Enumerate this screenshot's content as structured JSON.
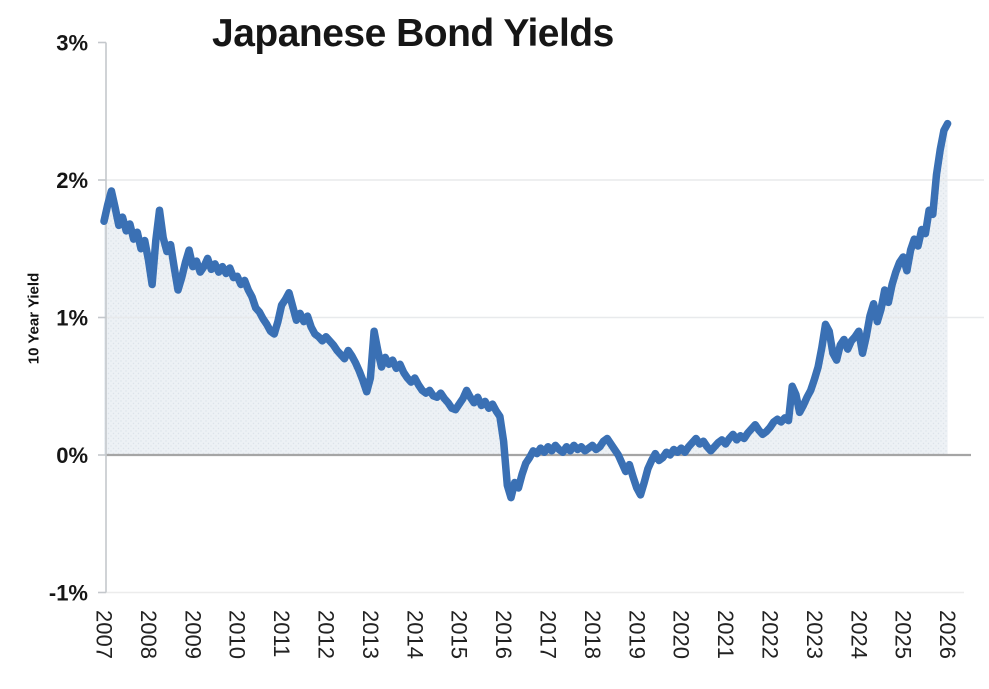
{
  "title": "Japanese Bond Yields",
  "y_axis": {
    "label": "10 Year Yield",
    "ticks": [
      "3%",
      "2%",
      "1%",
      "0%",
      "-1%"
    ]
  },
  "x_axis": {
    "ticks": [
      "2007",
      "2008",
      "2009",
      "2010",
      "2011",
      "2012",
      "2013",
      "2014",
      "2015",
      "2016",
      "2017",
      "2018",
      "2019",
      "2020",
      "2021",
      "2022",
      "2023",
      "2024",
      "2025",
      "2026"
    ]
  },
  "colors": {
    "line": "#3A70B4",
    "fill_base": "#EDF1F5",
    "fill_dot": "#DCE3EA",
    "grid_light": "#E8EAEC",
    "grid_faint": "#ECECEC",
    "zero_line": "#A5A5A5",
    "axis": "#C4C8CC",
    "text": "#161616",
    "tick_text": "#222222"
  },
  "chart_data": {
    "type": "area",
    "title": "Japanese Bond Yields",
    "ylabel": "10 Year Yield",
    "xlabel": "",
    "series_name": "10 Year Yield",
    "frequency": "monthly",
    "x_start_year": 2007,
    "x_end_year": 2026,
    "x_tick_years": [
      2007,
      2008,
      2009,
      2010,
      2011,
      2012,
      2013,
      2014,
      2015,
      2016,
      2017,
      2018,
      2019,
      2020,
      2021,
      2022,
      2023,
      2024,
      2025,
      2026
    ],
    "y_tick_values": [
      3,
      2,
      1,
      0,
      -1
    ],
    "ylim": [
      -1,
      3
    ],
    "grid": "horizontal-only",
    "legend": "none",
    "unit": "percent",
    "values": [
      1.7,
      1.82,
      1.92,
      1.8,
      1.67,
      1.73,
      1.63,
      1.68,
      1.57,
      1.62,
      1.5,
      1.56,
      1.42,
      1.24,
      1.56,
      1.78,
      1.58,
      1.48,
      1.53,
      1.36,
      1.2,
      1.29,
      1.4,
      1.49,
      1.37,
      1.41,
      1.33,
      1.37,
      1.43,
      1.35,
      1.39,
      1.33,
      1.37,
      1.32,
      1.36,
      1.29,
      1.3,
      1.24,
      1.27,
      1.2,
      1.15,
      1.07,
      1.04,
      0.99,
      0.95,
      0.9,
      0.88,
      0.97,
      1.09,
      1.13,
      1.18,
      1.08,
      0.98,
      1.03,
      0.97,
      1.01,
      0.93,
      0.88,
      0.86,
      0.83,
      0.86,
      0.83,
      0.8,
      0.76,
      0.73,
      0.7,
      0.76,
      0.72,
      0.67,
      0.61,
      0.54,
      0.46,
      0.56,
      0.9,
      0.76,
      0.64,
      0.71,
      0.66,
      0.69,
      0.63,
      0.66,
      0.6,
      0.56,
      0.53,
      0.56,
      0.51,
      0.47,
      0.45,
      0.47,
      0.43,
      0.42,
      0.45,
      0.41,
      0.38,
      0.34,
      0.33,
      0.37,
      0.41,
      0.47,
      0.42,
      0.38,
      0.42,
      0.36,
      0.39,
      0.34,
      0.37,
      0.32,
      0.28,
      0.1,
      -0.22,
      -0.31,
      -0.2,
      -0.24,
      -0.14,
      -0.06,
      -0.02,
      0.03,
      0.01,
      0.05,
      0.02,
      0.06,
      0.03,
      0.07,
      0.04,
      0.02,
      0.06,
      0.03,
      0.07,
      0.04,
      0.06,
      0.03,
      0.05,
      0.07,
      0.04,
      0.06,
      0.1,
      0.12,
      0.08,
      0.04,
      0.0,
      -0.06,
      -0.12,
      -0.07,
      -0.16,
      -0.24,
      -0.29,
      -0.2,
      -0.1,
      -0.04,
      0.01,
      -0.04,
      -0.02,
      0.02,
      0.0,
      0.04,
      0.02,
      0.05,
      0.02,
      0.06,
      0.09,
      0.12,
      0.08,
      0.1,
      0.06,
      0.03,
      0.06,
      0.09,
      0.11,
      0.08,
      0.12,
      0.15,
      0.11,
      0.14,
      0.12,
      0.16,
      0.19,
      0.22,
      0.18,
      0.15,
      0.17,
      0.2,
      0.24,
      0.26,
      0.24,
      0.27,
      0.25,
      0.5,
      0.44,
      0.31,
      0.36,
      0.42,
      0.47,
      0.55,
      0.64,
      0.78,
      0.95,
      0.9,
      0.74,
      0.69,
      0.8,
      0.84,
      0.77,
      0.83,
      0.86,
      0.9,
      0.74,
      0.86,
      1.01,
      1.1,
      0.97,
      1.06,
      1.2,
      1.11,
      1.24,
      1.33,
      1.4,
      1.44,
      1.34,
      1.49,
      1.57,
      1.52,
      1.64,
      1.61,
      1.78,
      1.75,
      2.04,
      2.22,
      2.36,
      2.41
    ]
  }
}
